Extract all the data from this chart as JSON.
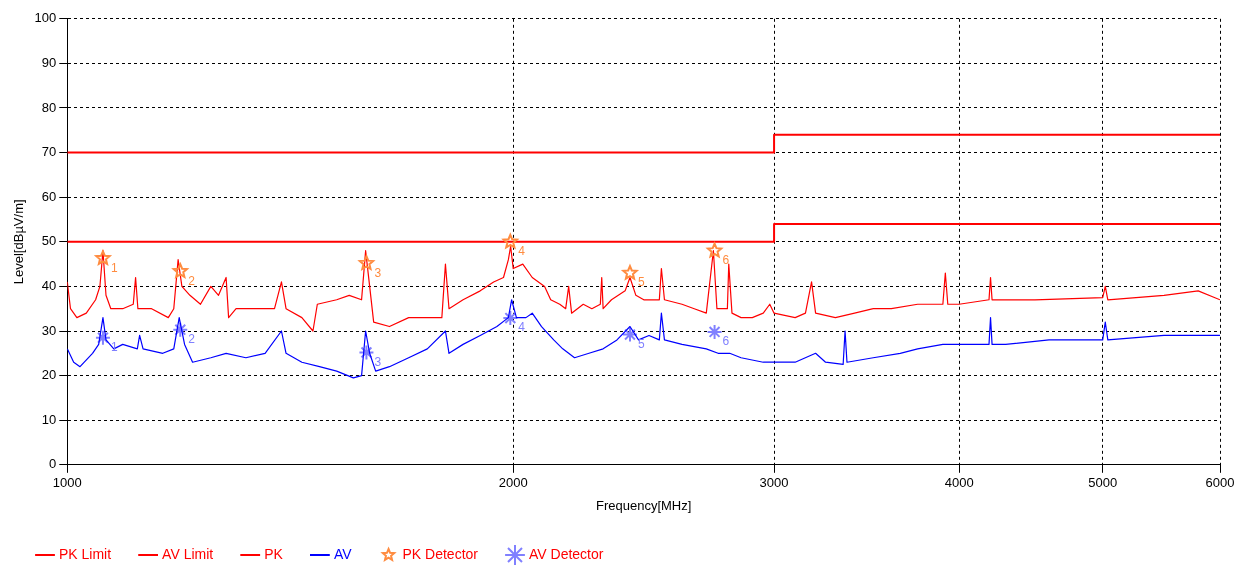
{
  "chart_data": {
    "type": "line",
    "xlabel": "Frequency[MHz]",
    "ylabel": "Level[dBµV/m]",
    "log": "x",
    "xlim": [
      1000,
      6000
    ],
    "xticks": [
      1000,
      2000,
      3000,
      4000,
      5000,
      6000
    ],
    "ylim": [
      0,
      100
    ],
    "yticks": [
      0,
      10,
      20,
      30,
      40,
      50,
      60,
      70,
      80,
      90,
      100
    ],
    "grid": true,
    "legend": "bottom",
    "series": [
      {
        "name": "PK Limit",
        "type": "step",
        "color": "#ff0000",
        "marker": "none",
        "x": [
          1000,
          3000,
          6000
        ],
        "values": [
          70,
          74,
          74
        ]
      },
      {
        "name": "AV Limit",
        "type": "step",
        "color": "#ff0000",
        "marker": "none",
        "x": [
          1000,
          3000,
          6000
        ],
        "values": [
          50,
          54,
          54
        ]
      },
      {
        "name": "PK",
        "color": "#ff0000",
        "marker": "none",
        "x": [
          1000,
          1005,
          1015,
          1030,
          1045,
          1052,
          1057,
          1062,
          1070,
          1090,
          1108,
          1112,
          1116,
          1140,
          1170,
          1180,
          1188,
          1195,
          1210,
          1230,
          1250,
          1265,
          1280,
          1285,
          1300,
          1340,
          1380,
          1395,
          1405,
          1440,
          1465,
          1475,
          1520,
          1550,
          1580,
          1590,
          1600,
          1610,
          1650,
          1700,
          1770,
          1790,
          1800,
          1810,
          1850,
          1900,
          1940,
          1970,
          1985,
          1992,
          2000,
          2030,
          2060,
          2100,
          2120,
          2150,
          2170,
          2180,
          2190,
          2230,
          2260,
          2290,
          2295,
          2300,
          2330,
          2380,
          2398,
          2420,
          2450,
          2510,
          2518,
          2530,
          2600,
          2650,
          2700,
          2730,
          2745,
          2790,
          2796,
          2810,
          2850,
          2900,
          2950,
          2980,
          3000,
          3100,
          3150,
          3180,
          3200,
          3300,
          3400,
          3500,
          3600,
          3750,
          3900,
          3915,
          3930,
          4000,
          4190,
          4200,
          4210,
          4500,
          5000,
          5020,
          5040,
          5500,
          5800,
          6000
        ],
        "values": [
          41,
          35,
          33,
          34,
          37,
          40,
          48,
          38,
          35,
          35,
          36,
          42,
          35,
          35,
          33,
          35,
          46,
          40,
          38,
          36,
          40,
          38,
          42,
          33,
          35,
          35,
          35,
          41,
          35,
          33,
          30,
          36,
          37,
          38,
          37,
          48,
          40,
          32,
          31,
          33,
          33,
          33,
          45,
          35,
          37,
          39,
          41,
          42,
          46,
          49,
          44,
          45,
          42,
          40,
          37,
          36,
          35,
          40,
          34,
          36,
          35,
          36,
          42,
          35,
          37,
          39,
          42,
          38,
          37,
          37,
          44,
          37,
          36,
          35,
          34,
          48,
          35,
          35,
          45,
          34,
          33,
          33,
          34,
          36,
          34,
          33,
          34,
          41,
          34,
          33,
          34,
          35,
          35,
          36,
          36,
          43,
          36,
          36,
          37,
          42,
          37,
          37,
          37.5,
          40,
          37,
          38,
          39,
          37
        ]
      },
      {
        "name": "AV",
        "color": "#0000ff",
        "marker": "none",
        "x": [
          1000,
          1010,
          1020,
          1040,
          1050,
          1057,
          1062,
          1075,
          1090,
          1115,
          1119,
          1125,
          1160,
          1180,
          1190,
          1200,
          1215,
          1250,
          1280,
          1320,
          1360,
          1395,
          1405,
          1440,
          1480,
          1520,
          1560,
          1580,
          1590,
          1600,
          1615,
          1650,
          1700,
          1750,
          1800,
          1810,
          1850,
          1900,
          1950,
          1985,
          1995,
          2010,
          2040,
          2060,
          2090,
          2130,
          2160,
          2180,
          2200,
          2250,
          2300,
          2350,
          2398,
          2430,
          2470,
          2510,
          2518,
          2530,
          2600,
          2700,
          2750,
          2800,
          2850,
          2950,
          3000,
          3100,
          3200,
          3250,
          3340,
          3350,
          3360,
          3500,
          3650,
          3750,
          3900,
          4000,
          4190,
          4200,
          4210,
          4300,
          4600,
          5000,
          5020,
          5040,
          5500,
          6000
        ],
        "values": [
          26,
          23,
          22,
          25,
          27,
          33,
          28,
          26,
          27,
          26,
          29,
          26,
          25,
          26,
          33,
          27,
          23,
          24,
          25,
          24,
          25,
          30,
          25,
          23,
          22,
          21,
          19.5,
          20,
          30,
          25,
          21,
          22,
          24,
          26,
          30,
          25,
          27,
          29,
          31,
          33,
          37,
          33,
          33,
          34,
          31,
          28,
          26,
          25,
          24,
          25,
          26,
          28,
          31,
          28,
          29,
          28,
          34,
          28,
          27,
          26,
          25,
          25,
          24,
          23,
          23,
          23,
          25,
          23,
          22.5,
          30,
          23,
          24,
          25,
          26,
          27,
          27,
          27,
          33,
          27,
          27,
          28,
          28,
          32,
          28,
          29,
          29
        ]
      },
      {
        "name": "PK Detector",
        "type": "scatter",
        "color": "#ff8c40",
        "marker": "star",
        "x": [
          1057,
          1192,
          1592,
          1991,
          2398,
          2735
        ],
        "values": [
          46.3,
          43.4,
          45.2,
          50,
          43,
          48
        ]
      },
      {
        "name": "AV Detector",
        "type": "scatter",
        "color": "#8080ff",
        "marker": "cross",
        "x": [
          1057,
          1192,
          1592,
          1991,
          2398,
          2735
        ],
        "values": [
          28.5,
          30.3,
          25.2,
          32.9,
          29.2,
          29.8
        ]
      }
    ],
    "annotations": [
      {
        "text": "1",
        "x": 1057,
        "y": 46.3
      },
      {
        "text": "2",
        "x": 1192,
        "y": 43.4
      },
      {
        "text": "3",
        "x": 1592,
        "y": 45.2
      },
      {
        "text": "4",
        "x": 1991,
        "y": 50
      },
      {
        "text": "5",
        "x": 2398,
        "y": 43
      },
      {
        "text": "6",
        "x": 2735,
        "y": 48
      },
      {
        "text": "1",
        "x": 1057,
        "y": 28.5
      },
      {
        "text": "2",
        "x": 1192,
        "y": 30.3
      },
      {
        "text": "3",
        "x": 1592,
        "y": 25.2
      },
      {
        "text": "4",
        "x": 1991,
        "y": 32.9
      },
      {
        "text": "5",
        "x": 2398,
        "y": 29.2
      },
      {
        "text": "6",
        "x": 2735,
        "y": 29.8
      }
    ]
  }
}
